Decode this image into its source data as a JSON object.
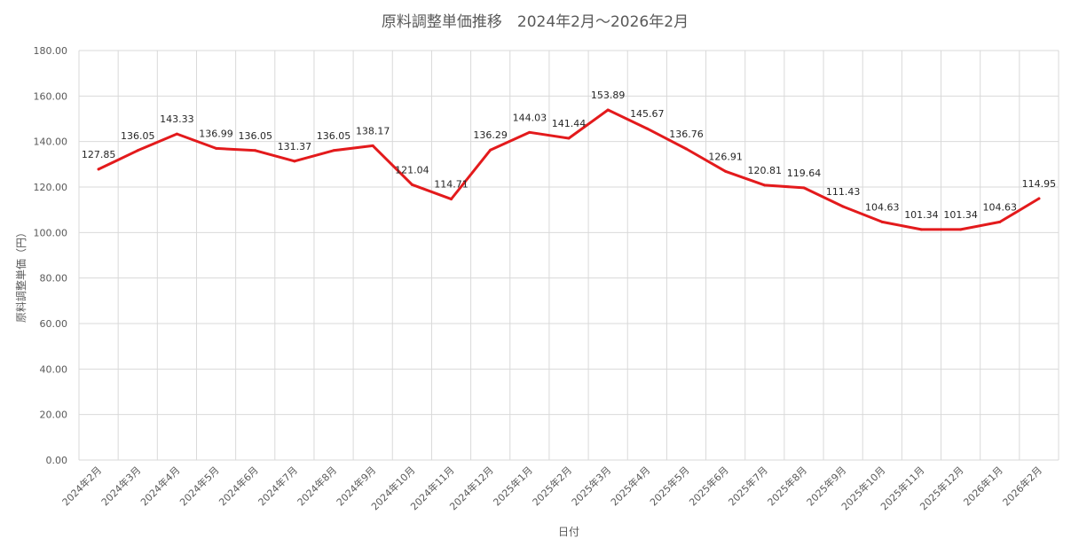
{
  "chart_data": {
    "type": "line",
    "title": "原料調整単価推移　2024年2月～2026年2月",
    "xlabel": "日付",
    "ylabel": "原料調整単価（円）",
    "ylim": [
      0,
      180
    ],
    "yticks": [
      "0.00",
      "20.00",
      "40.00",
      "60.00",
      "80.00",
      "100.00",
      "120.00",
      "140.00",
      "160.00",
      "180.00"
    ],
    "grid": true,
    "legend": "none",
    "categories": [
      "2024年2月",
      "2024年3月",
      "2024年4月",
      "2024年5月",
      "2024年6月",
      "2024年7月",
      "2024年8月",
      "2024年9月",
      "2024年10月",
      "2024年11月",
      "2024年12月",
      "2025年1月",
      "2025年2月",
      "2025年3月",
      "2025年4月",
      "2025年5月",
      "2025年6月",
      "2025年7月",
      "2025年8月",
      "2025年9月",
      "2025年10月",
      "2025年11月",
      "2025年12月",
      "2026年1月",
      "2026年2月"
    ],
    "series": [
      {
        "color": "#e31a1c",
        "values": [
          127.85,
          136.05,
          143.33,
          136.99,
          136.05,
          131.37,
          136.05,
          138.17,
          121.04,
          114.71,
          136.29,
          144.03,
          141.44,
          153.89,
          145.67,
          136.76,
          126.91,
          120.81,
          119.64,
          111.43,
          104.63,
          101.34,
          101.34,
          104.63,
          114.95
        ],
        "data_labels": [
          "127.85",
          "136.05",
          "143.33",
          "136.99",
          "136.05",
          "131.37",
          "136.05",
          "138.17",
          "121.04",
          "114.71",
          "136.29",
          "144.03",
          "141.44",
          "153.89",
          "145.67",
          "136.76",
          "126.91",
          "120.81",
          "119.64",
          "111.43",
          "104.63",
          "101.34",
          "101.34",
          "104.63",
          "114.95"
        ]
      }
    ]
  }
}
